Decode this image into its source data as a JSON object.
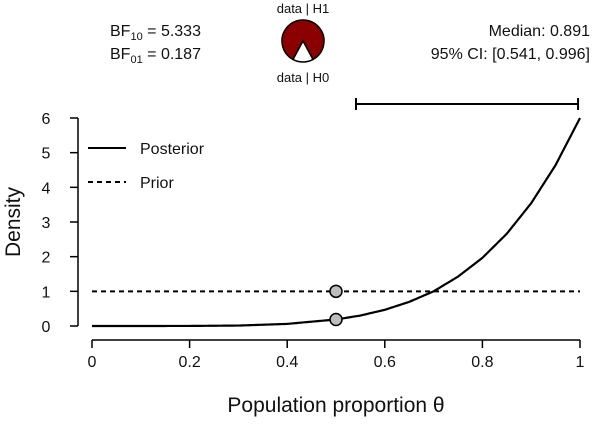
{
  "bayes": {
    "bf10_prefix": "BF",
    "bf10_sub": "10",
    "bf10_value": " = 5.333",
    "bf01_prefix": "BF",
    "bf01_sub": "01",
    "bf01_value": " = 0.187",
    "pie_label_top": "data | H1",
    "pie_label_bottom": "data | H0",
    "pie_h1_share": 0.842,
    "median_text": "Median: 0.891",
    "ci_text": "95% CI: [0.541, 0.996]",
    "ci_interval": [
      0.541,
      0.996
    ],
    "colors": {
      "h1": "#8b0000",
      "h0": "#ffffff",
      "marker_fill": "#bdbdbd"
    }
  },
  "chart_data": {
    "type": "line",
    "xlabel": "Population proportion θ",
    "ylabel": "Density",
    "xlim": [
      0,
      1
    ],
    "ylim": [
      0,
      6
    ],
    "x_ticks": [
      0,
      0.2,
      0.4,
      0.6,
      0.8,
      1
    ],
    "x_tick_labels": [
      "0",
      "0.2",
      "0.4",
      "0.6",
      "0.8",
      "1"
    ],
    "y_ticks": [
      0,
      1,
      2,
      3,
      4,
      5,
      6
    ],
    "y_tick_labels": [
      "0",
      "1",
      "2",
      "3",
      "4",
      "5",
      "6"
    ],
    "grid": false,
    "legend_position": "top-left",
    "series": [
      {
        "name": "Posterior",
        "style": "solid",
        "x": [
          0,
          0.1,
          0.2,
          0.3,
          0.4,
          0.5,
          0.55,
          0.6,
          0.65,
          0.7,
          0.75,
          0.8,
          0.85,
          0.9,
          0.95,
          1
        ],
        "y": [
          0,
          0.0,
          0.002,
          0.013,
          0.061,
          0.188,
          0.302,
          0.467,
          0.696,
          1.0,
          1.424,
          1.966,
          2.662,
          3.543,
          4.643,
          6.0
        ]
      },
      {
        "name": "Prior",
        "style": "dashed",
        "x": [
          0,
          1
        ],
        "y": [
          1,
          1
        ]
      }
    ],
    "points": [
      {
        "x": 0.5,
        "y": 1.0
      },
      {
        "x": 0.5,
        "y": 0.188
      }
    ]
  }
}
